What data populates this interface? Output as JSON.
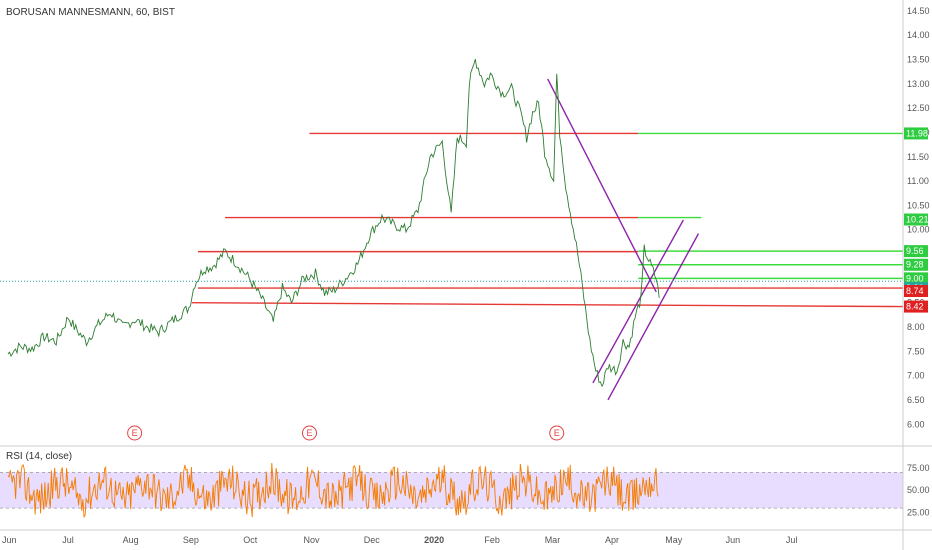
{
  "chart_data": {
    "type": "line",
    "title": "BORUSAN MANNESMANN, 60, BIST",
    "price_axis": {
      "ylim": [
        5.8,
        14.6
      ],
      "ticks": [
        "14.50",
        "14.00",
        "13.50",
        "13.00",
        "12.50",
        "12.00",
        "11.50",
        "11.00",
        "10.50",
        "10.00",
        "9.50",
        "9.00",
        "8.50",
        "8.00",
        "7.50",
        "7.00",
        "6.50",
        "6.00"
      ]
    },
    "time_axis": {
      "labels": [
        "Jun",
        "Jul",
        "Aug",
        "Sep",
        "Oct",
        "Nov",
        "Dec",
        "2020",
        "Feb",
        "Mar",
        "Apr",
        "May",
        "Jun",
        "Jul"
      ],
      "label_positions_month_index": [
        0,
        1,
        2,
        3,
        4,
        5,
        6,
        7,
        8,
        9,
        10,
        11,
        12,
        13
      ]
    },
    "price_series": {
      "name": "",
      "color": "#2e7d32",
      "points": [
        [
          0.0,
          7.45
        ],
        [
          0.2,
          7.6
        ],
        [
          0.4,
          7.55
        ],
        [
          0.6,
          7.8
        ],
        [
          0.8,
          7.7
        ],
        [
          1.0,
          8.2
        ],
        [
          1.1,
          8.0
        ],
        [
          1.3,
          7.7
        ],
        [
          1.5,
          8.05
        ],
        [
          1.7,
          8.3
        ],
        [
          1.9,
          8.0
        ],
        [
          2.1,
          8.15
        ],
        [
          2.3,
          8.0
        ],
        [
          2.5,
          7.9
        ],
        [
          2.7,
          8.1
        ],
        [
          2.9,
          8.3
        ],
        [
          3.0,
          8.4
        ],
        [
          3.1,
          8.9
        ],
        [
          3.25,
          9.2
        ],
        [
          3.4,
          9.25
        ],
        [
          3.5,
          9.4
        ],
        [
          3.6,
          9.55
        ],
        [
          3.8,
          9.3
        ],
        [
          4.0,
          9.0
        ],
        [
          4.2,
          8.6
        ],
        [
          4.4,
          8.1
        ],
        [
          4.55,
          8.8
        ],
        [
          4.7,
          8.5
        ],
        [
          4.9,
          9.0
        ],
        [
          5.1,
          9.1
        ],
        [
          5.25,
          8.7
        ],
        [
          5.4,
          8.75
        ],
        [
          5.6,
          9.0
        ],
        [
          5.8,
          9.3
        ],
        [
          6.0,
          9.9
        ],
        [
          6.2,
          10.25
        ],
        [
          6.4,
          10.1
        ],
        [
          6.6,
          10.0
        ],
        [
          6.8,
          10.4
        ],
        [
          7.0,
          11.5
        ],
        [
          7.2,
          11.8
        ],
        [
          7.35,
          10.3
        ],
        [
          7.45,
          11.9
        ],
        [
          7.6,
          11.8
        ],
        [
          7.65,
          13.0
        ],
        [
          7.75,
          13.5
        ],
        [
          7.9,
          13.0
        ],
        [
          8.0,
          13.2
        ],
        [
          8.2,
          12.8
        ],
        [
          8.35,
          12.9
        ],
        [
          8.5,
          12.4
        ],
        [
          8.6,
          11.9
        ],
        [
          8.7,
          12.4
        ],
        [
          8.8,
          12.6
        ],
        [
          8.9,
          11.6
        ],
        [
          9.0,
          11.2
        ],
        [
          9.05,
          11.0
        ],
        [
          9.1,
          13.2
        ],
        [
          9.15,
          12.0
        ],
        [
          9.25,
          10.9
        ],
        [
          9.35,
          10.2
        ],
        [
          9.45,
          9.5
        ],
        [
          9.55,
          8.6
        ],
        [
          9.65,
          7.7
        ],
        [
          9.75,
          7.1
        ],
        [
          9.85,
          6.8
        ],
        [
          9.95,
          7.2
        ],
        [
          10.1,
          7.1
        ],
        [
          10.2,
          7.7
        ],
        [
          10.3,
          7.6
        ],
        [
          10.4,
          8.2
        ],
        [
          10.5,
          8.6
        ],
        [
          10.55,
          9.6
        ],
        [
          10.65,
          9.3
        ],
        [
          10.75,
          9.0
        ],
        [
          10.8,
          8.6
        ]
      ]
    },
    "annotation_lines_month_index": {
      "red_lines": [
        {
          "x1": 5.0,
          "x2": 10.45,
          "y1": 11.98,
          "y2": 11.98
        },
        {
          "x1": 3.6,
          "x2": 10.45,
          "y1": 10.25,
          "y2": 10.25
        },
        {
          "x1": 3.15,
          "x2": 10.45,
          "y1": 9.55,
          "y2": 9.55
        },
        {
          "x1": 3.15,
          "x2": 14.9,
          "y1": 8.8,
          "y2": 8.8
        },
        {
          "x1": 3.05,
          "x2": 14.9,
          "y1": 8.5,
          "y2": 8.42
        }
      ],
      "green_lines": [
        {
          "x1": 10.45,
          "x2": 14.9,
          "y1": 11.98,
          "y2": 11.98
        },
        {
          "x1": 10.45,
          "x2": 11.5,
          "y1": 10.25,
          "y2": 10.25
        },
        {
          "x1": 10.45,
          "x2": 14.9,
          "y1": 9.56,
          "y2": 9.56
        },
        {
          "x1": 10.45,
          "x2": 14.9,
          "y1": 9.28,
          "y2": 9.28
        },
        {
          "x1": 10.45,
          "x2": 14.9,
          "y1": 9.0,
          "y2": 9.0
        }
      ],
      "purple_lines": [
        {
          "x1": 8.95,
          "x2": 10.75,
          "y1": 13.1,
          "y2": 8.72
        },
        {
          "x1": 9.7,
          "x2": 11.2,
          "y1": 6.85,
          "y2": 10.2
        },
        {
          "x1": 9.95,
          "x2": 11.45,
          "y1": 6.5,
          "y2": 9.92
        }
      ]
    },
    "price_badges": [
      {
        "label": "11.98",
        "value": 11.98,
        "color": "#2ecc40"
      },
      {
        "label": "10.21",
        "value": 10.21,
        "color": "#2ecc40"
      },
      {
        "label": "9.56",
        "value": 9.56,
        "color": "#2ecc40"
      },
      {
        "label": "9.28",
        "value": 9.28,
        "color": "#2ecc40"
      },
      {
        "label": "9.00",
        "value": 9.0,
        "color": "#2ecc40"
      },
      {
        "label": "8.80",
        "value": 8.8,
        "color": "#26a69a"
      },
      {
        "label": "8.74",
        "value": 8.74,
        "color": "#e02020"
      },
      {
        "label": "8.42",
        "value": 8.42,
        "color": "#e02020"
      }
    ],
    "events": [
      {
        "label": "E",
        "month_index": 2.1
      },
      {
        "label": "E",
        "month_index": 5.0
      },
      {
        "label": "E",
        "month_index": 9.1
      }
    ],
    "rsi": {
      "title": "RSI (14, close)",
      "ylim": [
        10,
        95
      ],
      "ticks": [
        "75.00",
        "50.00",
        "25.00"
      ],
      "band": [
        30,
        70
      ],
      "band_color": "#e8dcff",
      "line_color": "#f57c00"
    }
  }
}
